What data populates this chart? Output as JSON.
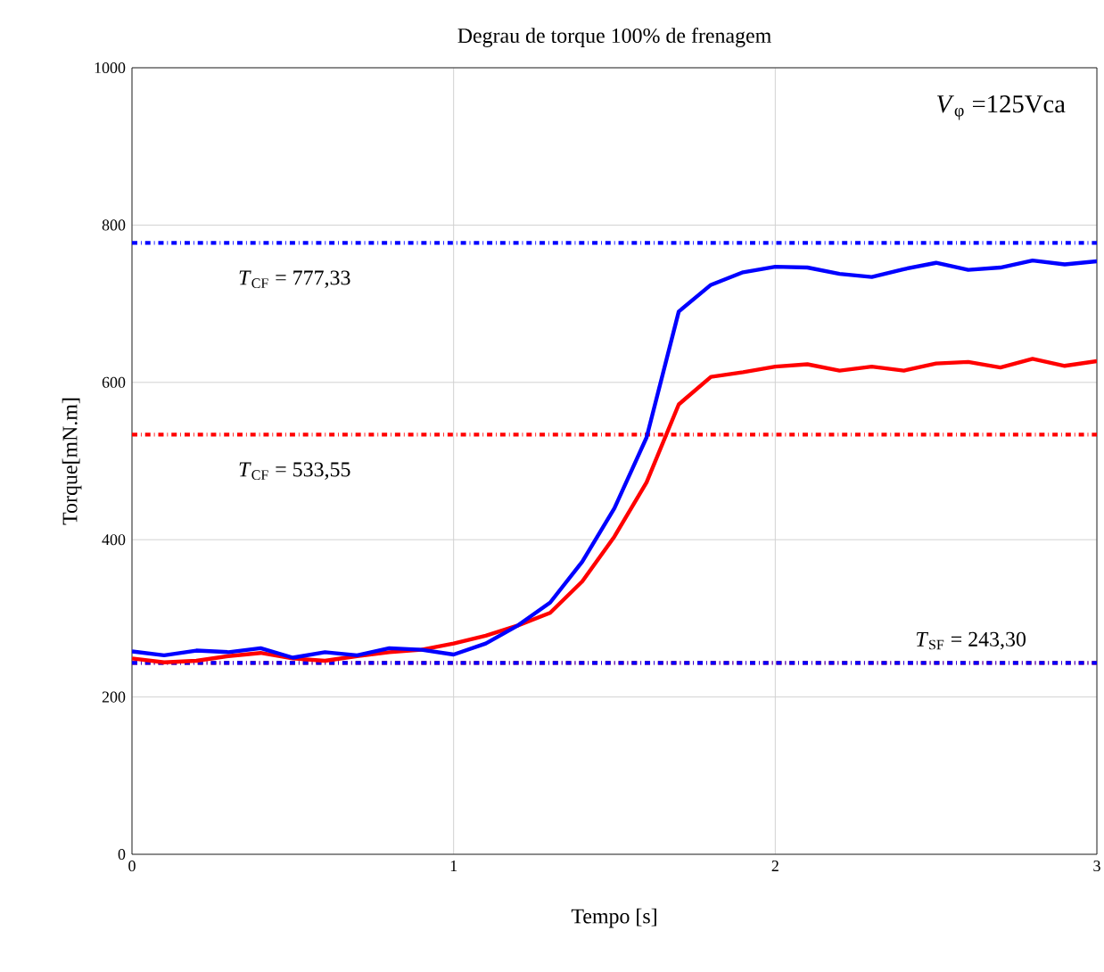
{
  "chart_data": {
    "type": "line",
    "title": "Degrau de torque 100% de frenagem",
    "xlabel": "Tempo [s]",
    "ylabel": "Torque[mN.m]",
    "x": [
      0,
      0.1,
      0.2,
      0.3,
      0.4,
      0.5,
      0.6,
      0.7,
      0.8,
      0.9,
      1.0,
      1.1,
      1.2,
      1.3,
      1.4,
      1.5,
      1.6,
      1.7,
      1.8,
      1.9,
      2.0,
      2.1,
      2.2,
      2.3,
      2.4,
      2.5,
      2.6,
      2.7,
      2.8,
      2.9,
      3.0
    ],
    "series": [
      {
        "color": "#ff0000",
        "values": [
          249,
          244,
          246,
          252,
          256,
          249,
          246,
          252,
          257,
          260,
          268,
          278,
          291,
          307,
          347,
          404,
          473,
          572,
          607,
          613,
          620,
          623,
          615,
          620,
          615,
          624,
          626,
          619,
          630,
          621,
          627
        ]
      },
      {
        "color": "#0000ff",
        "values": [
          258,
          253,
          259,
          257,
          262,
          250,
          257,
          253,
          262,
          260,
          254,
          268,
          291,
          320,
          372,
          440,
          530,
          690,
          724,
          740,
          747,
          746,
          738,
          734,
          744,
          752,
          743,
          746,
          755,
          750,
          754
        ]
      }
    ],
    "xlim": [
      0,
      3
    ],
    "ylim": [
      0,
      1000
    ],
    "xticks": [
      0,
      1,
      2,
      3
    ],
    "yticks": [
      0,
      200,
      400,
      600,
      800,
      1000
    ],
    "grid": true,
    "line_style": "solid",
    "ref_lines": [
      {
        "axis": "y",
        "value": 777.33,
        "label": "*T*$_{CF}$ = 777,33",
        "color": "#0000ff",
        "line_style": "dashdot"
      },
      {
        "axis": "y",
        "value": 533.55,
        "label": "*T*$_{CF}$ = 533,55",
        "color": "#ff0000",
        "line_style": "dashdot"
      },
      {
        "axis": "y",
        "value": 243.3,
        "color": "#ff0000",
        "line_style": "dashdot"
      },
      {
        "axis": "y",
        "value": 243.3,
        "label": "*T*$_{SF}$ = 243,30",
        "color": "#0000ff",
        "line_style": "dashdot"
      }
    ],
    "annotations": [
      "*V*$_{φ}$ =125Vca"
    ]
  }
}
